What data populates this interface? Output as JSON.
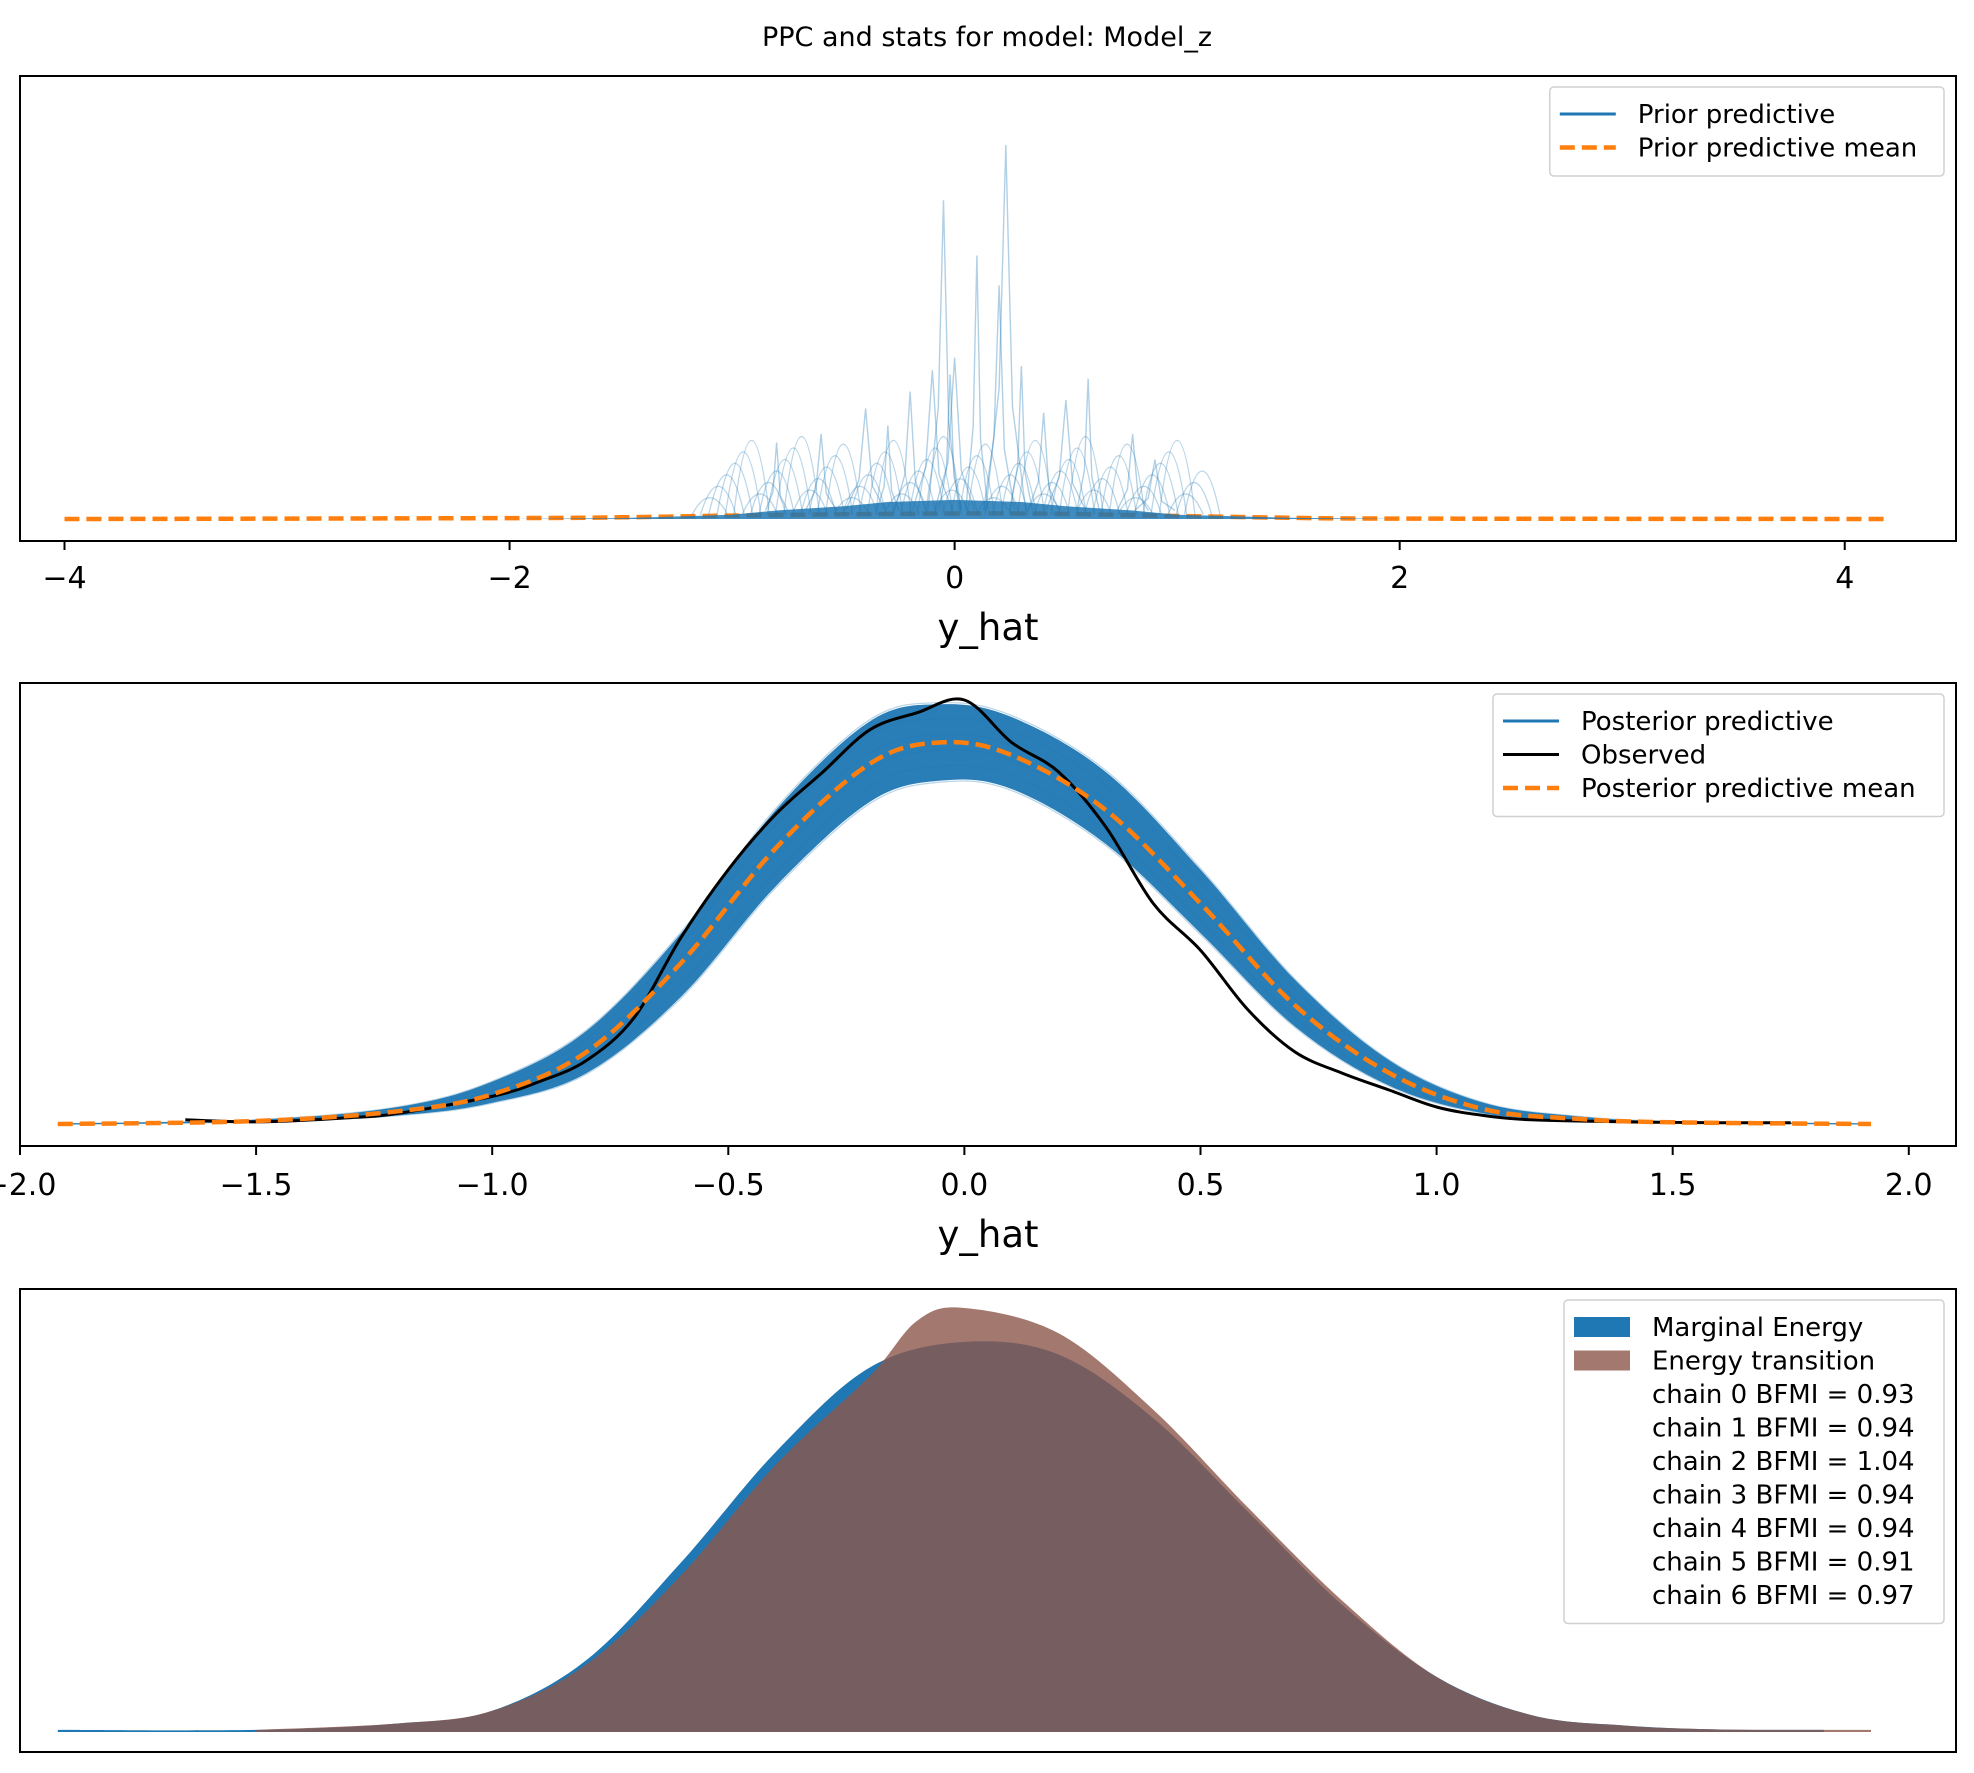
{
  "title": "PPC and stats for model: Model_z",
  "colors": {
    "blue": "#1f77b4",
    "orange": "#ff7f0e",
    "brown": "#8c564b",
    "black": "#000000"
  },
  "chart_data": [
    {
      "type": "line",
      "panel": "prior-predictive",
      "xlabel": "y_hat",
      "ylabel": "",
      "xlim": [
        -4.2,
        4.5
      ],
      "ylim": [
        0,
        1.0
      ],
      "xticks": [
        -4,
        -2,
        0,
        2,
        4
      ],
      "xtick_labels": [
        "−4",
        "−2",
        "0",
        "2",
        "4"
      ],
      "legend_position": "upper right",
      "legend": [
        "Prior predictive",
        "Prior predictive mean"
      ],
      "series": [
        {
          "name": "Prior predictive mean",
          "style": "dashed",
          "x": [
            -4.0,
            -2.0,
            -1.5,
            -1.0,
            -0.5,
            0.0,
            0.3,
            0.6,
            1.0,
            1.5,
            2.0,
            4.2
          ],
          "y": [
            0.0,
            0.002,
            0.004,
            0.008,
            0.011,
            0.013,
            0.013,
            0.011,
            0.007,
            0.003,
            0.001,
            0.0
          ]
        },
        {
          "name": "Prior predictive",
          "style": "ensemble",
          "x": [
            -2.0,
            -1.5,
            -1.0,
            -0.8,
            -0.5,
            -0.3,
            0.0,
            0.3,
            0.5,
            0.8,
            1.0,
            1.5,
            2.0
          ],
          "y": [
            0.0,
            0.002,
            0.01,
            0.02,
            0.03,
            0.04,
            0.045,
            0.04,
            0.03,
            0.02,
            0.01,
            0.003,
            0.0
          ],
          "spikes": [
            {
              "x": -0.8,
              "y": 0.18
            },
            {
              "x": -0.6,
              "y": 0.2
            },
            {
              "x": -0.4,
              "y": 0.26
            },
            {
              "x": -0.3,
              "y": 0.22
            },
            {
              "x": -0.2,
              "y": 0.3
            },
            {
              "x": -0.1,
              "y": 0.35
            },
            {
              "x": -0.02,
              "y": 0.34
            },
            {
              "x": -0.05,
              "y": 0.75
            },
            {
              "x": 0.0,
              "y": 0.38
            },
            {
              "x": 0.1,
              "y": 0.62
            },
            {
              "x": 0.2,
              "y": 0.55
            },
            {
              "x": 0.23,
              "y": 0.88
            },
            {
              "x": 0.3,
              "y": 0.36
            },
            {
              "x": 0.4,
              "y": 0.25
            },
            {
              "x": 0.5,
              "y": 0.28
            },
            {
              "x": 0.6,
              "y": 0.33
            },
            {
              "x": 0.8,
              "y": 0.2
            },
            {
              "x": 0.9,
              "y": 0.14
            }
          ]
        }
      ]
    },
    {
      "type": "line",
      "panel": "posterior-predictive",
      "xlabel": "y_hat",
      "ylabel": "",
      "xlim": [
        -2.0,
        2.1
      ],
      "ylim": [
        0,
        1.0
      ],
      "xticks": [
        -2.0,
        -1.5,
        -1.0,
        -0.5,
        0.0,
        0.5,
        1.0,
        1.5,
        2.0
      ],
      "xtick_labels": [
        "−2.0",
        "−1.5",
        "−1.0",
        "−0.5",
        "0.0",
        "0.5",
        "1.0",
        "1.5",
        "2.0"
      ],
      "legend_position": "upper right",
      "legend": [
        "Posterior predictive",
        "Observed",
        "Posterior predictive mean"
      ],
      "series": [
        {
          "name": "Posterior predictive",
          "style": "band",
          "x": [
            -1.92,
            -1.5,
            -1.2,
            -1.0,
            -0.8,
            -0.6,
            -0.4,
            -0.2,
            -0.05,
            0.1,
            0.3,
            0.5,
            0.7,
            0.9,
            1.1,
            1.3,
            1.5,
            1.92
          ],
          "lower": [
            0.0,
            0.005,
            0.02,
            0.05,
            0.12,
            0.3,
            0.56,
            0.76,
            0.81,
            0.79,
            0.66,
            0.45,
            0.23,
            0.09,
            0.025,
            0.008,
            0.003,
            0.0
          ],
          "upper": [
            0.0,
            0.01,
            0.04,
            0.1,
            0.22,
            0.45,
            0.74,
            0.95,
            0.99,
            0.96,
            0.83,
            0.6,
            0.34,
            0.15,
            0.05,
            0.018,
            0.006,
            0.0
          ]
        },
        {
          "name": "Observed",
          "style": "solid",
          "x": [
            -1.65,
            -1.5,
            -1.3,
            -1.2,
            -1.0,
            -0.9,
            -0.8,
            -0.7,
            -0.6,
            -0.5,
            -0.4,
            -0.3,
            -0.2,
            -0.1,
            0.0,
            0.1,
            0.2,
            0.3,
            0.4,
            0.5,
            0.6,
            0.7,
            0.8,
            0.9,
            1.0,
            1.1,
            1.2,
            1.4,
            1.6,
            1.75
          ],
          "y": [
            0.01,
            0.005,
            0.015,
            0.025,
            0.065,
            0.1,
            0.15,
            0.25,
            0.44,
            0.6,
            0.73,
            0.83,
            0.93,
            0.97,
            1.0,
            0.9,
            0.83,
            0.7,
            0.52,
            0.41,
            0.27,
            0.17,
            0.12,
            0.08,
            0.04,
            0.02,
            0.01,
            0.005,
            0.003,
            0.003
          ]
        },
        {
          "name": "Posterior predictive mean",
          "style": "dashed",
          "x": [
            -1.92,
            -1.5,
            -1.2,
            -1.0,
            -0.8,
            -0.6,
            -0.4,
            -0.2,
            -0.05,
            0.1,
            0.3,
            0.5,
            0.7,
            0.9,
            1.1,
            1.3,
            1.5,
            1.92
          ],
          "y": [
            0.0,
            0.007,
            0.03,
            0.07,
            0.17,
            0.38,
            0.65,
            0.85,
            0.9,
            0.87,
            0.74,
            0.52,
            0.28,
            0.12,
            0.035,
            0.012,
            0.004,
            0.0
          ]
        }
      ]
    },
    {
      "type": "area",
      "panel": "energy",
      "xlabel": "",
      "ylabel": "",
      "xlim": [
        -2.0,
        2.1
      ],
      "ylim": [
        0,
        1.0
      ],
      "legend_position": "upper right",
      "legend": [
        "Marginal Energy",
        "Energy transition",
        "chain  0 BFMI = 0.93",
        "chain  1 BFMI = 0.94",
        "chain  2 BFMI = 1.04",
        "chain  3 BFMI = 0.94",
        "chain  4 BFMI = 0.94",
        "chain  5 BFMI = 0.91",
        "chain  6 BFMI = 0.97"
      ],
      "bfmi": [
        0.93,
        0.94,
        1.04,
        0.94,
        0.94,
        0.91,
        0.97
      ],
      "series": [
        {
          "name": "Marginal Energy",
          "x": [
            -1.92,
            -1.5,
            -1.2,
            -1.0,
            -0.8,
            -0.6,
            -0.4,
            -0.2,
            0.0,
            0.2,
            0.4,
            0.6,
            0.8,
            1.0,
            1.2,
            1.4,
            1.6,
            1.82
          ],
          "y": [
            0.005,
            0.005,
            0.02,
            0.05,
            0.17,
            0.4,
            0.66,
            0.86,
            0.92,
            0.89,
            0.74,
            0.52,
            0.3,
            0.13,
            0.04,
            0.015,
            0.006,
            0.005
          ]
        },
        {
          "name": "Energy transition",
          "x": [
            -1.5,
            -1.2,
            -1.0,
            -0.8,
            -0.6,
            -0.4,
            -0.2,
            -0.1,
            0.0,
            0.2,
            0.4,
            0.6,
            0.8,
            1.0,
            1.2,
            1.4,
            1.6,
            1.92
          ],
          "y": [
            0.005,
            0.02,
            0.05,
            0.16,
            0.37,
            0.63,
            0.84,
            0.97,
            1.0,
            0.94,
            0.76,
            0.53,
            0.31,
            0.13,
            0.04,
            0.015,
            0.006,
            0.005
          ]
        }
      ]
    }
  ]
}
